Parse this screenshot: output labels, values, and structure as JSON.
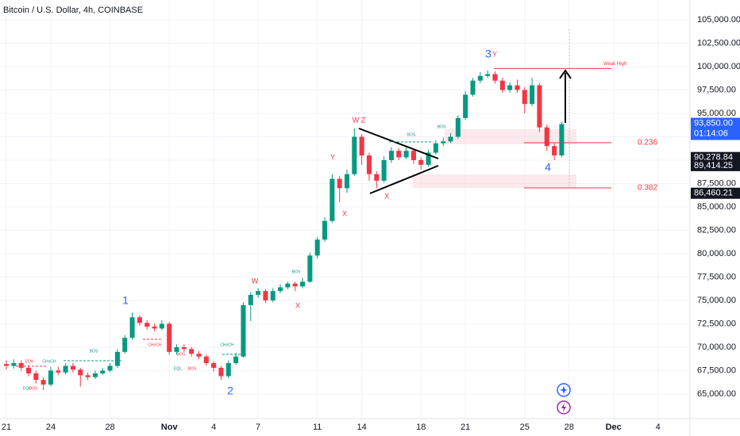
{
  "chart_data": {
    "type": "candlestick",
    "title": "Bitcoin / U.S. Dollar, 4h, COINBASE",
    "x": [
      0,
      0.5,
      1,
      1.5,
      2,
      2.5,
      3,
      3.5,
      4,
      4.5,
      5,
      5.5,
      6,
      6.5,
      7,
      7.5,
      8,
      8.5,
      9,
      9.5,
      10,
      10.5,
      11,
      11.5,
      12,
      12.5,
      13,
      13.5,
      14,
      14.5,
      15,
      15.5,
      16,
      16.5,
      17,
      17.5,
      18,
      18.5,
      19,
      19.5,
      20,
      20.5,
      21,
      21.5,
      22,
      22.5,
      23,
      23.5,
      24,
      24.5,
      25,
      25.5,
      26,
      26.5,
      27,
      27.5,
      28,
      28.5,
      29,
      29.5,
      30,
      30.5,
      31,
      31.5,
      32,
      32.5,
      33,
      33.5,
      34,
      34.5,
      35,
      35.5,
      36,
      36.5,
      37,
      37.5
    ],
    "open": [
      68200,
      68000,
      68300,
      67800,
      67200,
      66500,
      66000,
      67500,
      67300,
      68000,
      67600,
      67000,
      66800,
      67200,
      67500,
      68000,
      69500,
      71000,
      73200,
      72600,
      72200,
      72000,
      72500,
      69500,
      70000,
      69800,
      69300,
      69000,
      68300,
      67800,
      66900,
      68300,
      69000,
      74500,
      75600,
      76000,
      75000,
      76000,
      76400,
      76800,
      76500,
      77000,
      79800,
      81500,
      83500,
      88000,
      87000,
      88500,
      92500,
      90500,
      88500,
      87800,
      90000,
      91000,
      90300,
      91000,
      90000,
      89500,
      90800,
      91800,
      92000,
      92500,
      94500,
      97000,
      98500,
      99000,
      99200,
      98500,
      97500,
      98000,
      97500,
      96000,
      98000,
      93500,
      91500,
      90500
    ],
    "high": [
      68600,
      68700,
      68600,
      68100,
      67500,
      66800,
      67900,
      67900,
      68300,
      68300,
      67800,
      67300,
      67500,
      67800,
      68300,
      69800,
      71300,
      73700,
      73400,
      72900,
      72500,
      72900,
      72700,
      70300,
      70300,
      70000,
      69600,
      69200,
      68500,
      68000,
      68600,
      69400,
      74800,
      75900,
      76300,
      76200,
      76300,
      76700,
      77000,
      77000,
      77400,
      80100,
      81800,
      83900,
      88500,
      88300,
      89000,
      93400,
      92800,
      90800,
      88800,
      90400,
      91400,
      91300,
      91500,
      91200,
      90300,
      91100,
      92100,
      92400,
      92900,
      94800,
      97400,
      98800,
      99400,
      99600,
      99500,
      98800,
      98300,
      98600,
      97800,
      98800,
      98200,
      93800,
      91800,
      94100
    ],
    "low": [
      67600,
      67700,
      67500,
      66900,
      66100,
      65400,
      65800,
      67000,
      67100,
      67300,
      65800,
      66500,
      66600,
      67000,
      67300,
      67800,
      69300,
      70800,
      72300,
      71900,
      71700,
      71800,
      69200,
      69200,
      69500,
      69000,
      68700,
      68000,
      67400,
      66500,
      66700,
      68100,
      68900,
      72800,
      75300,
      74700,
      74800,
      75800,
      76200,
      76000,
      76300,
      76900,
      79500,
      81300,
      83300,
      85500,
      86500,
      88300,
      89500,
      87800,
      87000,
      87600,
      89700,
      90000,
      90100,
      89600,
      89000,
      89300,
      90600,
      91500,
      91800,
      92300,
      94300,
      96800,
      98200,
      98800,
      98200,
      97200,
      97200,
      97200,
      95000,
      95800,
      93000,
      91000,
      90000,
      90300
    ],
    "close": [
      68000,
      68300,
      67800,
      67200,
      66500,
      66000,
      67500,
      67300,
      68000,
      67600,
      67000,
      66800,
      67200,
      67500,
      68000,
      69500,
      71000,
      73200,
      72600,
      72200,
      72000,
      72500,
      69500,
      70000,
      69800,
      69300,
      69000,
      68300,
      67800,
      66900,
      68300,
      69000,
      74500,
      75600,
      76000,
      75000,
      76000,
      76400,
      76800,
      76500,
      77000,
      79800,
      81500,
      83500,
      88000,
      87000,
      88500,
      92500,
      90500,
      88500,
      87800,
      90000,
      91000,
      90300,
      91000,
      90000,
      89500,
      90800,
      91800,
      92000,
      92500,
      94500,
      97000,
      98500,
      99000,
      99200,
      98500,
      97500,
      98000,
      97500,
      96000,
      98000,
      93500,
      91500,
      90500,
      93850
    ],
    "up_color": "#089981",
    "down_color": "#f23645",
    "xlim": [
      -0.43,
      46.11
    ],
    "xticks": [
      {
        "value": 0,
        "label": "21"
      },
      {
        "value": 3,
        "label": "24"
      },
      {
        "value": 7,
        "label": "28"
      },
      {
        "value": 11,
        "label": "Nov"
      },
      {
        "value": 14,
        "label": "4"
      },
      {
        "value": 17,
        "label": "7"
      },
      {
        "value": 21,
        "label": "11"
      },
      {
        "value": 24,
        "label": "14"
      },
      {
        "value": 28,
        "label": "18"
      },
      {
        "value": 31,
        "label": "21"
      },
      {
        "value": 35,
        "label": "25"
      },
      {
        "value": 38,
        "label": "28"
      },
      {
        "value": 41,
        "label": "Dec"
      },
      {
        "value": 44,
        "label": "4"
      }
    ],
    "ylim": [
      62200,
      107120
    ],
    "yticks": [
      {
        "value": 65000,
        "label": "65,000.00"
      },
      {
        "value": 67500,
        "label": "67,500.00"
      },
      {
        "value": 70000,
        "label": "70,000.00"
      },
      {
        "value": 72500,
        "label": "72,500.00"
      },
      {
        "value": 75000,
        "label": "75,000.00"
      },
      {
        "value": 77500,
        "label": "77,500.00"
      },
      {
        "value": 80000,
        "label": "80,000.00"
      },
      {
        "value": 82500,
        "label": "82,500.00"
      },
      {
        "value": 85000,
        "label": "85,000.00"
      },
      {
        "value": 87500,
        "label": "87,500.00"
      },
      {
        "value": 90000,
        "label": "90,000.00"
      },
      {
        "value": 92500,
        "label": "92,500.00"
      },
      {
        "value": 95000,
        "label": "95,000.00"
      },
      {
        "value": 97500,
        "label": "97,500.00"
      },
      {
        "value": 100000,
        "label": "100,000.00"
      },
      {
        "value": 102500,
        "label": "102,500.00"
      },
      {
        "value": 105000,
        "label": "105,000.00"
      }
    ],
    "last_price": {
      "value": 93850,
      "label": "93,850.00",
      "countdown": "01:14:06"
    },
    "price_labels": [
      {
        "value": 90278.84,
        "label": "90,278.84"
      },
      {
        "value": 89414.25,
        "label": "89,414.25"
      },
      {
        "value": 86460.21,
        "label": "86,460.21"
      }
    ],
    "levels": [
      {
        "value": 99800,
        "label": "Weak High"
      },
      {
        "value": 91860,
        "label": "0.236"
      },
      {
        "value": 87030,
        "label": "0.382"
      }
    ],
    "annotations": [
      "1",
      "2",
      "3",
      "Y",
      "4",
      "W Z",
      "Y",
      "X",
      "X",
      "W",
      "X",
      "EQH",
      "CHoCH",
      "BOS",
      "CHoCH",
      "BOS",
      "EQL",
      "BOS",
      "CHoCH",
      "BOS",
      "BOS",
      "BOS",
      "EQL",
      "BOS"
    ]
  }
}
